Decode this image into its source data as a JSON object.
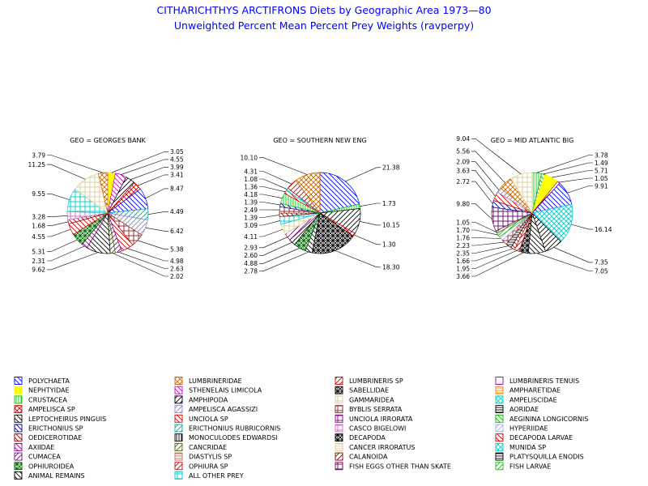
{
  "title": "CITHARICHTHYS ARCTIFRONS Diets by Geographic Area 1973—80",
  "subtitle": "Unweighted Percent Mean Percent Prey  Weights (ravperpy)",
  "chart_data": {
    "type": "pie",
    "legend_position": "bottom",
    "categories": [
      {
        "name": "POLYCHAETA",
        "color": "#0000ff",
        "pattern": "diag-down"
      },
      {
        "name": "LUMBRINERIDAE",
        "color": "#cc6600",
        "pattern": "diag-cross"
      },
      {
        "name": "LUMBRINERIS SP",
        "color": "#cc0000",
        "pattern": "diag-up"
      },
      {
        "name": "LUMBRINERIS TENUIS",
        "color": "#8800aa",
        "pattern": "none"
      },
      {
        "name": "NEPHTYIDAE",
        "color": "#ffff00",
        "pattern": "solid"
      },
      {
        "name": "STHENELAIS LIMICOLA",
        "color": "#cc00cc",
        "pattern": "diag-down"
      },
      {
        "name": "SABELLIDAE",
        "color": "#000000",
        "pattern": "grid-diag"
      },
      {
        "name": "AMPHARETIDAE",
        "color": "#ff8800",
        "pattern": "horizontal"
      },
      {
        "name": "CRUSTACEA",
        "color": "#00cc00",
        "pattern": "vertical"
      },
      {
        "name": "AMPHIPODA",
        "color": "#000000",
        "pattern": "diag-up"
      },
      {
        "name": "GAMMARIDEA",
        "color": "#ddcc99",
        "pattern": "grid"
      },
      {
        "name": "AMPELISCIDAE",
        "color": "#00cccc",
        "pattern": "diag-cross"
      },
      {
        "name": "AMPELISCA SP",
        "color": "#cc0000",
        "pattern": "diag-cross"
      },
      {
        "name": "AMPELISCA AGASSIZI",
        "color": "#8888cc",
        "pattern": "diag-up"
      },
      {
        "name": "BYBLIS SERRATA",
        "color": "#882222",
        "pattern": "grid"
      },
      {
        "name": "AORIDAE",
        "color": "#000000",
        "pattern": "horizontal"
      },
      {
        "name": "LEPTOCHEIRUS PINGUIS",
        "color": "#000000",
        "pattern": "diag-down"
      },
      {
        "name": "UNCIOLA SP",
        "color": "#cc0000",
        "pattern": "diag-down"
      },
      {
        "name": "UNCIOLA IRRORATA",
        "color": "#880088",
        "pattern": "grid"
      },
      {
        "name": "AEGININA LONGICORNIS",
        "color": "#00aa00",
        "pattern": "diag-down"
      },
      {
        "name": "ERICTHONIUS SP",
        "color": "#000088",
        "pattern": "diag-down"
      },
      {
        "name": "ERICTHONIUS RUBRICORNIS",
        "color": "#00aaaa",
        "pattern": "diag-up"
      },
      {
        "name": "CASCO BIGELOWI",
        "color": "#cc66cc",
        "pattern": "grid"
      },
      {
        "name": "HYPERIIDAE",
        "color": "#aaaadd",
        "pattern": "diag-up"
      },
      {
        "name": "OEDICEROTIDAE",
        "color": "#880000",
        "pattern": "diag-down"
      },
      {
        "name": "MONOCULODES EDWARDSI",
        "color": "#000000",
        "pattern": "vertical"
      },
      {
        "name": "DECAPODA",
        "color": "#000000",
        "pattern": "grid-diag"
      },
      {
        "name": "DECAPODA LARVAE",
        "color": "#cc0000",
        "pattern": "diag-down"
      },
      {
        "name": "AXIIDAE",
        "color": "#880088",
        "pattern": "diag-down"
      },
      {
        "name": "CANCRIDAE",
        "color": "#446600",
        "pattern": "diag-up"
      },
      {
        "name": "CANCER IRRORATUS",
        "color": "#ddcc99",
        "pattern": "horizontal"
      },
      {
        "name": "MUNIDA SP",
        "color": "#00cccc",
        "pattern": "diag-cross"
      },
      {
        "name": "CUMACEA",
        "color": "#880088",
        "pattern": "diag-up"
      },
      {
        "name": "DIASTYLIS SP",
        "color": "#cc6666",
        "pattern": "horizontal"
      },
      {
        "name": "CALANOIDA",
        "color": "#880000",
        "pattern": "diag-up"
      },
      {
        "name": "PLATYSQUILLA ENODIS",
        "color": "#000000",
        "pattern": "horizontal"
      },
      {
        "name": "OPHIUROIDEA",
        "color": "#006600",
        "pattern": "grid-diag"
      },
      {
        "name": "OPHIURA SP",
        "color": "#cc0000",
        "pattern": "diag-up"
      },
      {
        "name": "FISH EGGS OTHER THAN SKATE",
        "color": "#660066",
        "pattern": "grid"
      },
      {
        "name": "FISH LARVAE",
        "color": "#00cc00",
        "pattern": "diag-up"
      },
      {
        "name": "ANIMAL REMAINS",
        "color": "#000000",
        "pattern": "diag-down"
      },
      {
        "name": "ALL OTHER PREY",
        "color": "#00cccc",
        "pattern": "grid"
      }
    ],
    "pies": [
      {
        "label": "GEO = GEORGES BANK",
        "slices": [
          {
            "category": "NEPHTYIDAE",
            "value": 3.05
          },
          {
            "category": "STHENELAIS LIMICOLA",
            "value": 4.55
          },
          {
            "category": "AMPHIPODA",
            "value": 3.99
          },
          {
            "category": "AMPELISCA SP",
            "value": 3.41
          },
          {
            "category": "POLYCHAETA",
            "value": 8.47
          },
          {
            "category": "ERICTHONIUS RUBRICORNIS",
            "value": 4.49
          },
          {
            "category": "AMPELISCA AGASSIZI",
            "value": 6.42
          },
          {
            "category": "BYBLIS SERRATA",
            "value": 5.38
          },
          {
            "category": "UNCIOLA SP",
            "value": 4.98
          },
          {
            "category": "CUMACEA",
            "value": 2.63
          },
          {
            "category": "CANCRIDAE",
            "value": 2.02
          },
          {
            "category": "ANIMAL REMAINS",
            "value": 9.62
          },
          {
            "category": "AXIIDAE",
            "value": 2.31
          },
          {
            "category": "OPHIUROIDEA",
            "value": 5.31
          },
          {
            "category": "DECAPODA LARVAE",
            "value": 4.55
          },
          {
            "category": "OEDICEROTIDAE",
            "value": 1.68
          },
          {
            "category": "CASCO BIGELOWI",
            "value": 3.28
          },
          {
            "category": "ALL OTHER PREY",
            "value": 9.55
          },
          {
            "category": "GAMMARIDEA",
            "value": 11.25
          },
          {
            "category": "LUMBRINERIDAE",
            "value": 3.79
          }
        ]
      },
      {
        "label": "GEO = SOUTHERN NEW ENG",
        "slices": [
          {
            "category": "POLYCHAETA",
            "value": 21.38
          },
          {
            "category": "CRUSTACEA",
            "value": 1.73
          },
          {
            "category": "AMPHIPODA",
            "value": 10.15
          },
          {
            "category": "AMPELISCA SP",
            "value": 1.3
          },
          {
            "category": "DECAPODA",
            "value": 18.3
          },
          {
            "category": "ANIMAL REMAINS",
            "value": 2.78
          },
          {
            "category": "OPHIUROIDEA",
            "value": 4.88
          },
          {
            "category": "AMPHIPODA",
            "value": 2.6
          },
          {
            "category": "CUMACEA",
            "value": 2.93
          },
          {
            "category": "GAMMARIDEA",
            "value": 4.11
          },
          {
            "category": "ALL OTHER PREY",
            "value": 3.09
          },
          {
            "category": "OEDICEROTIDAE",
            "value": 1.39
          },
          {
            "category": "BYBLIS SERRATA",
            "value": 2.49
          },
          {
            "category": "ERICTHONIUS SP",
            "value": 1.39
          },
          {
            "category": "CRUSTACEA",
            "value": 4.18
          },
          {
            "category": "UNCIOLA SP",
            "value": 1.36
          },
          {
            "category": "AMPELISCIDAE",
            "value": 1.08
          },
          {
            "category": "LUMBRINERIS SP",
            "value": 4.31
          },
          {
            "category": "LUMBRINERIDAE",
            "value": 10.1
          }
        ]
      },
      {
        "label": "GEO = MID  ATLANTIC  BIG",
        "slices": [
          {
            "category": "CRUSTACEA",
            "value": 3.78
          },
          {
            "category": "AEGININA LONGICORNIS",
            "value": 1.49
          },
          {
            "category": "NEPHTYIDAE",
            "value": 5.71
          },
          {
            "category": "LUMBRINERIS SP",
            "value": 1.05
          },
          {
            "category": "POLYCHAETA",
            "value": 9.91
          },
          {
            "category": "MUNIDA SP",
            "value": 16.14
          },
          {
            "category": "AMPHIPODA",
            "value": 7.35
          },
          {
            "category": "ANIMAL REMAINS",
            "value": 7.05
          },
          {
            "category": "DECAPODA",
            "value": 3.66
          },
          {
            "category": "OPHIURA SP",
            "value": 1.95
          },
          {
            "category": "DECAPODA LARVAE",
            "value": 1.66
          },
          {
            "category": "AORIDAE",
            "value": 2.35
          },
          {
            "category": "BYBLIS SERRATA",
            "value": 2.23
          },
          {
            "category": "HYPERIIDAE",
            "value": 1.76
          },
          {
            "category": "FISH LARVAE",
            "value": 1.7
          },
          {
            "category": "CANCRIDAE",
            "value": 1.05
          },
          {
            "category": "FISH EGGS OTHER THAN SKATE",
            "value": 9.8
          },
          {
            "category": "ERICTHONIUS SP",
            "value": 2.72
          },
          {
            "category": "UNCIOLA SP",
            "value": 3.63
          },
          {
            "category": "AMPELISCA AGASSIZI",
            "value": 2.09
          },
          {
            "category": "LUMBRINERIDAE",
            "value": 5.56
          },
          {
            "category": "GAMMARIDEA",
            "value": 9.04
          }
        ]
      }
    ]
  }
}
